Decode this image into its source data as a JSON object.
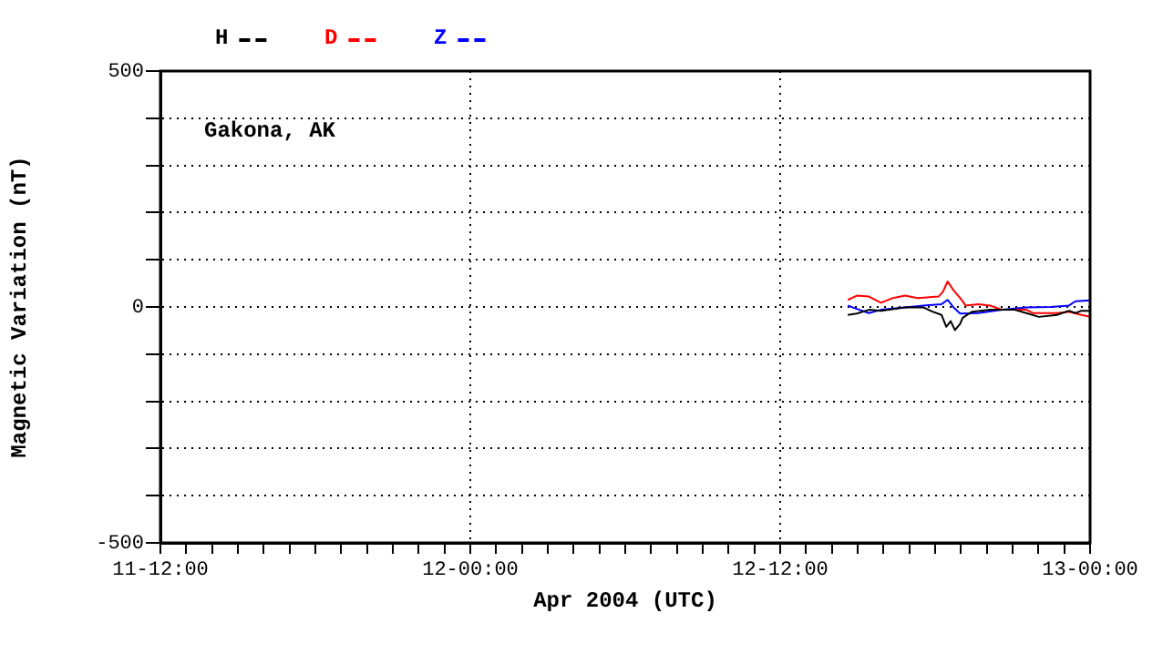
{
  "chart_data": {
    "type": "line",
    "xlabel": "Apr 2004 (UTC)",
    "ylabel": "Magnetic Variation (nT)",
    "annotations": [
      "Gakona, AK"
    ],
    "legend": "top left",
    "grid": true,
    "xlim": [
      "2004-04-11T12:00",
      "2004-04-13T00:00"
    ],
    "xticks": [
      {
        "value": "2004-04-11T12:00",
        "label": "11-12:00"
      },
      {
        "value": "2004-04-11T13:00",
        "label": null
      },
      {
        "value": "2004-04-11T14:00",
        "label": null
      },
      {
        "value": "2004-04-11T15:00",
        "label": null
      },
      {
        "value": "2004-04-11T16:00",
        "label": null
      },
      {
        "value": "2004-04-11T17:00",
        "label": null
      },
      {
        "value": "2004-04-11T18:00",
        "label": null
      },
      {
        "value": "2004-04-11T19:00",
        "label": null
      },
      {
        "value": "2004-04-11T20:00",
        "label": null
      },
      {
        "value": "2004-04-11T21:00",
        "label": null
      },
      {
        "value": "2004-04-11T22:00",
        "label": null
      },
      {
        "value": "2004-04-11T23:00",
        "label": null
      },
      {
        "value": "2004-04-12T00:00",
        "label": "12-00:00"
      },
      {
        "value": "2004-04-12T01:00",
        "label": null
      },
      {
        "value": "2004-04-12T02:00",
        "label": null
      },
      {
        "value": "2004-04-12T03:00",
        "label": null
      },
      {
        "value": "2004-04-12T04:00",
        "label": null
      },
      {
        "value": "2004-04-12T05:00",
        "label": null
      },
      {
        "value": "2004-04-12T06:00",
        "label": null
      },
      {
        "value": "2004-04-12T07:00",
        "label": null
      },
      {
        "value": "2004-04-12T08:00",
        "label": null
      },
      {
        "value": "2004-04-12T09:00",
        "label": null
      },
      {
        "value": "2004-04-12T10:00",
        "label": null
      },
      {
        "value": "2004-04-12T11:00",
        "label": null
      },
      {
        "value": "2004-04-12T12:00",
        "label": "12-12:00"
      },
      {
        "value": "2004-04-12T13:00",
        "label": null
      },
      {
        "value": "2004-04-12T14:00",
        "label": null
      },
      {
        "value": "2004-04-12T15:00",
        "label": null
      },
      {
        "value": "2004-04-12T16:00",
        "label": null
      },
      {
        "value": "2004-04-12T17:00",
        "label": null
      },
      {
        "value": "2004-04-12T18:00",
        "label": null
      },
      {
        "value": "2004-04-12T19:00",
        "label": null
      },
      {
        "value": "2004-04-12T20:00",
        "label": null
      },
      {
        "value": "2004-04-12T21:00",
        "label": null
      },
      {
        "value": "2004-04-12T22:00",
        "label": null
      },
      {
        "value": "2004-04-12T23:00",
        "label": null
      },
      {
        "value": "2004-04-13T00:00",
        "label": "13-00:00"
      }
    ],
    "ylim": [
      -500,
      500
    ],
    "yticks": [
      -500,
      {
        "value": -400,
        "label": null
      },
      {
        "value": -300,
        "label": null
      },
      {
        "value": -200,
        "label": null
      },
      {
        "value": -100,
        "label": null
      },
      0,
      {
        "value": 100,
        "label": null
      },
      {
        "value": 200,
        "label": null
      },
      {
        "value": 300,
        "label": null
      },
      {
        "value": 400,
        "label": null
      },
      500
    ],
    "series": [
      {
        "name": "H",
        "color": "#000000",
        "x": [
          "2004-04-12T14:37",
          "2004-04-12T14:58",
          "2004-04-12T15:26",
          "2004-04-12T15:54",
          "2004-04-12T16:50",
          "2004-04-12T17:33",
          "2004-04-12T17:54",
          "2004-04-12T18:15",
          "2004-04-12T18:26",
          "2004-04-12T18:36",
          "2004-04-12T18:46",
          "2004-04-12T18:58",
          "2004-04-12T19:04",
          "2004-04-12T19:26",
          "2004-04-12T20:08",
          "2004-04-12T21:05",
          "2004-04-12T21:32",
          "2004-04-12T22:01",
          "2004-04-12T22:43",
          "2004-04-12T23:11",
          "2004-04-12T23:26",
          "2004-04-12T23:40",
          "2004-04-13T00:00"
        ],
        "values": [
          -17,
          -14,
          -6,
          -8,
          -1,
          -1,
          -10,
          -17,
          -42,
          -30,
          -49,
          -36,
          -23,
          -10,
          -6,
          -6,
          -13,
          -21,
          -17,
          -8,
          -13,
          -8,
          -8
        ]
      },
      {
        "name": "D",
        "color": "#ff0000",
        "x": [
          "2004-04-12T14:37",
          "2004-04-12T14:58",
          "2004-04-12T15:26",
          "2004-04-12T15:54",
          "2004-04-12T16:22",
          "2004-04-12T16:50",
          "2004-04-12T17:19",
          "2004-04-12T18:08",
          "2004-04-12T18:18",
          "2004-04-12T18:29",
          "2004-04-12T18:43",
          "2004-04-12T18:58",
          "2004-04-12T19:11",
          "2004-04-12T19:40",
          "2004-04-12T20:08",
          "2004-04-12T20:36",
          "2004-04-12T21:32",
          "2004-04-12T21:47",
          "2004-04-12T22:43",
          "2004-04-12T23:11",
          "2004-04-12T23:40",
          "2004-04-13T00:00"
        ],
        "values": [
          15,
          24,
          22,
          9,
          19,
          24,
          19,
          22,
          32,
          54,
          35,
          19,
          3,
          6,
          3,
          -6,
          -6,
          -13,
          -13,
          -10,
          -17,
          -21
        ]
      },
      {
        "name": "Z",
        "color": "#0000ff",
        "x": [
          "2004-04-12T14:37",
          "2004-04-12T14:58",
          "2004-04-12T15:26",
          "2004-04-12T15:54",
          "2004-04-12T16:50",
          "2004-04-12T17:33",
          "2004-04-12T18:15",
          "2004-04-12T18:29",
          "2004-04-12T18:43",
          "2004-04-12T18:58",
          "2004-04-12T19:40",
          "2004-04-12T20:36",
          "2004-04-12T21:32",
          "2004-04-12T22:29",
          "2004-04-12T23:11",
          "2004-04-12T23:26",
          "2004-04-13T00:00"
        ],
        "values": [
          3,
          -4,
          -13,
          -6,
          -1,
          3,
          6,
          15,
          -1,
          -14,
          -13,
          -6,
          -1,
          0,
          3,
          12,
          14
        ]
      }
    ]
  }
}
